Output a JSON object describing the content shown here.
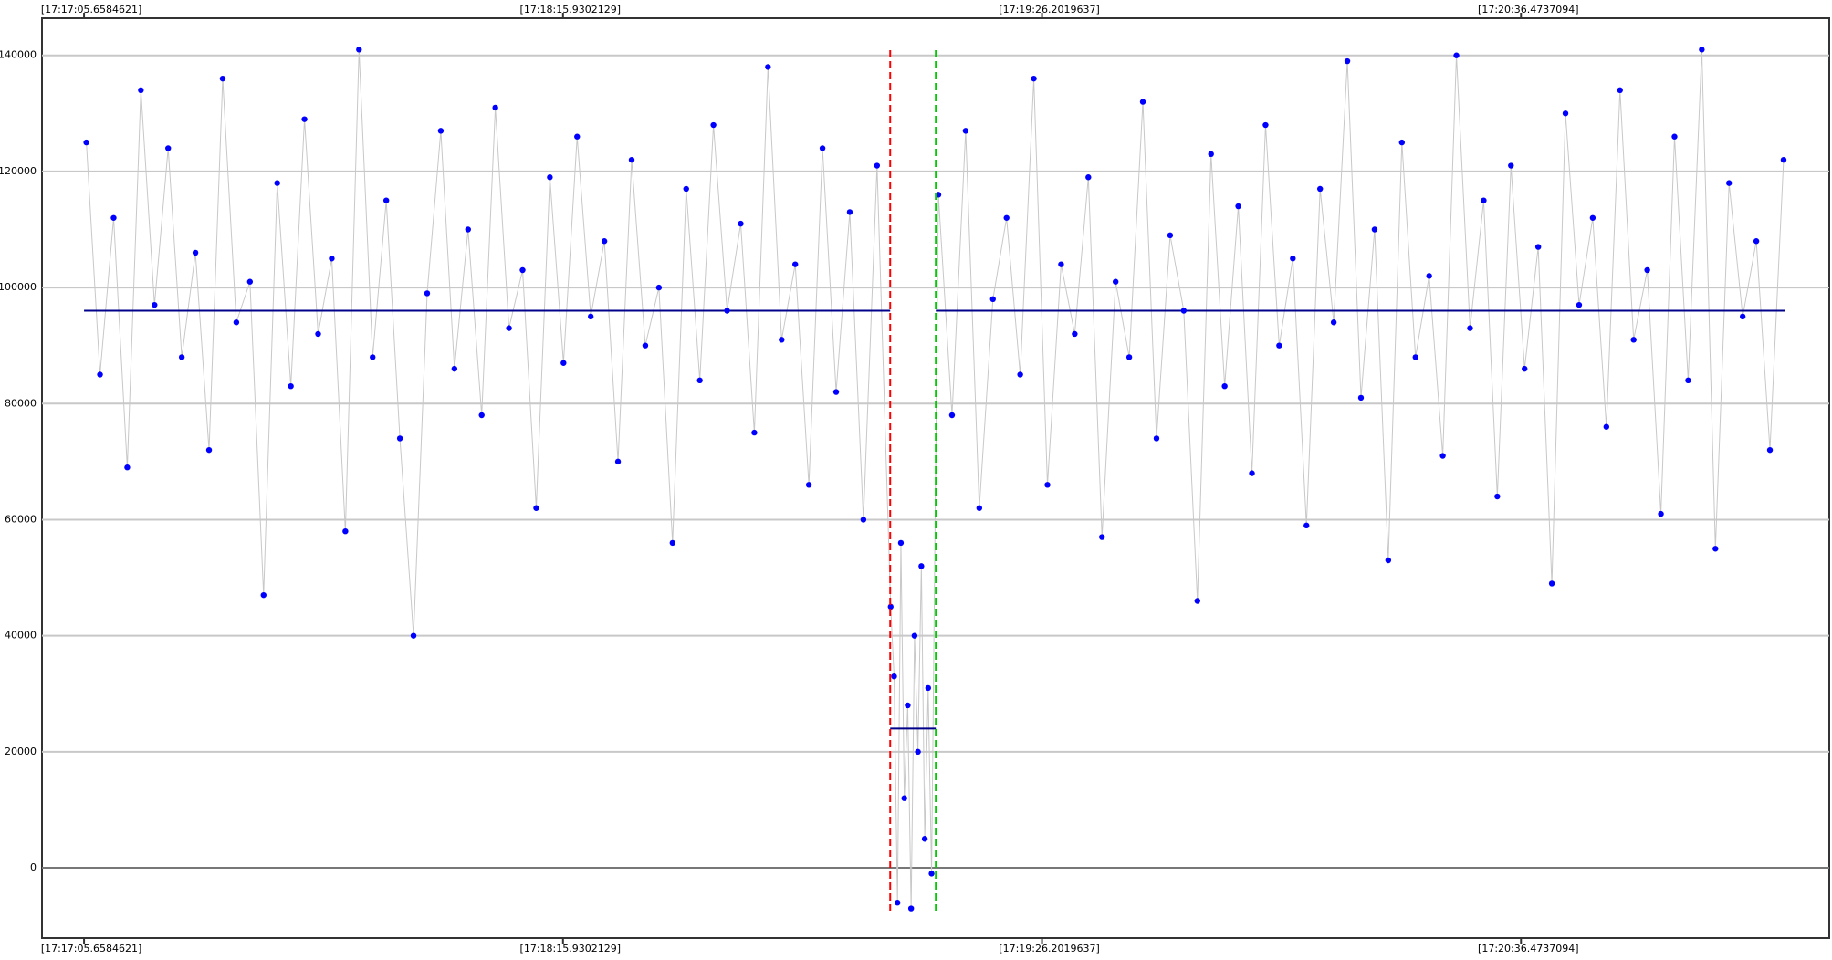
{
  "chart_data": {
    "type": "line",
    "x": [
      62226,
      62228,
      62230,
      62232,
      62234,
      62236,
      62238,
      62240,
      62242,
      62244,
      62246,
      62248,
      62250,
      62252,
      62254,
      62256,
      62258,
      62260,
      62262,
      62264,
      62266,
      62268,
      62270,
      62272,
      62274,
      62276,
      62278,
      62280,
      62282,
      62284,
      62286,
      62288,
      62290,
      62292,
      62294,
      62296,
      62298,
      62300,
      62302,
      62304,
      62306,
      62308,
      62310,
      62312,
      62314,
      62316,
      62318,
      62320,
      62322,
      62324,
      62326,
      62328,
      62330,
      62332,
      62334,
      62336,
      62338,
      62340,
      62342,
      62344,
      62344.5,
      62345,
      62345.5,
      62346,
      62346.5,
      62347,
      62347.5,
      62348,
      62348.5,
      62349,
      62349.5,
      62350,
      62351,
      62353,
      62355,
      62357,
      62359,
      62361,
      62363,
      62365,
      62367,
      62369,
      62371,
      62373,
      62375,
      62377,
      62379,
      62381,
      62383,
      62385,
      62387,
      62389,
      62391,
      62393,
      62395,
      62397,
      62399,
      62401,
      62403,
      62405,
      62407,
      62409,
      62411,
      62413,
      62415,
      62417,
      62419,
      62421,
      62423,
      62425,
      62427,
      62429,
      62431,
      62433,
      62435,
      62437,
      62439,
      62441,
      62443,
      62445,
      62447,
      62449,
      62451,
      62453,
      62455,
      62457,
      62459,
      62461,
      62463,
      62465,
      62467,
      62469,
      62471,
      62473,
      62475
    ],
    "series": [
      {
        "color": "#0000ff",
        "line_color": "#c8c8c8",
        "values": [
          125000,
          85000,
          112000,
          69000,
          134000,
          97000,
          124000,
          88000,
          106000,
          72000,
          136000,
          94000,
          101000,
          47000,
          118000,
          83000,
          129000,
          92000,
          105000,
          58000,
          141000,
          88000,
          115000,
          74000,
          40000,
          99000,
          127000,
          86000,
          110000,
          78000,
          131000,
          93000,
          103000,
          62000,
          119000,
          87000,
          126000,
          95000,
          108000,
          70000,
          122000,
          90000,
          100000,
          56000,
          117000,
          84000,
          128000,
          96000,
          111000,
          75000,
          138000,
          91000,
          104000,
          66000,
          124000,
          82000,
          113000,
          60000,
          121000,
          45000,
          33000,
          -6000,
          56000,
          12000,
          28000,
          -7000,
          40000,
          20000,
          52000,
          5000,
          31000,
          -1000,
          116000,
          78000,
          127000,
          62000,
          98000,
          112000,
          85000,
          136000,
          66000,
          104000,
          92000,
          119000,
          57000,
          101000,
          88000,
          132000,
          74000,
          109000,
          96000,
          46000,
          123000,
          83000,
          114000,
          68000,
          128000,
          90000,
          105000,
          59000,
          117000,
          94000,
          139000,
          81000,
          110000,
          53000,
          125000,
          88000,
          102000,
          71000,
          140000,
          93000,
          115000,
          64000,
          121000,
          86000,
          107000,
          49000,
          130000,
          97000,
          112000,
          76000,
          134000,
          91000,
          103000,
          61000,
          126000,
          84000,
          141000,
          55000,
          118000,
          95000,
          108000,
          72000,
          122000
        ]
      }
    ],
    "reference_lines": [
      {
        "x": [
          62225.66,
          62343.93
        ],
        "y": 96000,
        "color": "#00008b"
      },
      {
        "x": [
          62343.93,
          62350.62
        ],
        "y": 24000,
        "color": "#00008b"
      },
      {
        "x": [
          62350.62,
          62475.2
        ],
        "y": 96000,
        "color": "#00008b"
      }
    ],
    "markers": [
      {
        "x": 62343.93,
        "color": "#ff0000"
      },
      {
        "x": 62350.62,
        "color": "#00cc00"
      }
    ],
    "xlim": [
      62219.49,
      62481.7
    ],
    "xticks": [
      {
        "value": 62225.6584621,
        "label": "[17:17:05.6584621]"
      },
      {
        "value": 62295.9302129,
        "label": "[17:18:15.9302129]"
      },
      {
        "value": 62366.2019637,
        "label": "[17:19:26.2019637]"
      },
      {
        "value": 62436.4737094,
        "label": "[17:20:36.4737094]"
      }
    ],
    "ylim": [
      -12100,
      146400
    ],
    "yticks": [
      0,
      20000,
      40000,
      60000,
      80000,
      100000,
      120000,
      140000
    ],
    "grid": true
  }
}
